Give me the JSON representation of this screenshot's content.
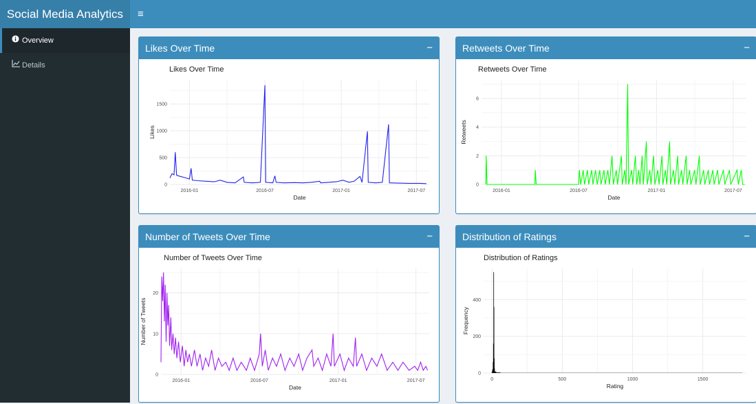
{
  "app": {
    "title": "Social Media Analytics",
    "menu_toggle": "≡"
  },
  "sidebar": {
    "items": [
      {
        "label": "Overview",
        "icon": "info-circle-icon",
        "active": true
      },
      {
        "label": "Details",
        "icon": "line-chart-icon",
        "active": false
      }
    ]
  },
  "colors": {
    "header": "#3c8dbc",
    "sidebar": "#222d32",
    "likes": "#2222ee",
    "retweets": "#00ff00",
    "tweets": "#a020f0",
    "ratings": "#000000"
  },
  "boxes": [
    {
      "title": "Likes Over Time",
      "collapse": "−"
    },
    {
      "title": "Retweets Over Time",
      "collapse": "−"
    },
    {
      "title": "Number of Tweets Over Time",
      "collapse": "−"
    },
    {
      "title": "Distribution of Ratings",
      "collapse": "−"
    }
  ],
  "chart_data": [
    {
      "type": "line",
      "title": "Likes Over Time",
      "xlabel": "Date",
      "ylabel": "Likes",
      "xticks": [
        "2016-01",
        "2016-07",
        "2017-01",
        "2017-07"
      ],
      "yticks": [
        0,
        500,
        1000,
        1500
      ],
      "xlim": [
        "2015-11-15",
        "2017-08-01"
      ],
      "ylim": [
        0,
        1950
      ],
      "grid": true,
      "series": [
        {
          "points": [
            [
              "2015-11-15",
              120
            ],
            [
              "2015-11-20",
              200
            ],
            [
              "2015-11-25",
              180
            ],
            [
              "2015-11-28",
              600
            ],
            [
              "2015-12-01",
              170
            ],
            [
              "2015-12-10",
              150
            ],
            [
              "2015-12-20",
              130
            ],
            [
              "2016-01-01",
              100
            ],
            [
              "2016-01-05",
              300
            ],
            [
              "2016-01-08",
              80
            ],
            [
              "2016-01-20",
              70
            ],
            [
              "2016-02-10",
              60
            ],
            [
              "2016-03-01",
              50
            ],
            [
              "2016-03-15",
              80
            ],
            [
              "2016-04-01",
              40
            ],
            [
              "2016-04-20",
              30
            ],
            [
              "2016-05-10",
              140
            ],
            [
              "2016-05-12",
              40
            ],
            [
              "2016-06-01",
              30
            ],
            [
              "2016-06-20",
              40
            ],
            [
              "2016-07-01",
              1850
            ],
            [
              "2016-07-03",
              40
            ],
            [
              "2016-07-20",
              30
            ],
            [
              "2016-07-25",
              160
            ],
            [
              "2016-07-28",
              40
            ],
            [
              "2016-08-15",
              30
            ],
            [
              "2016-09-10",
              35
            ],
            [
              "2016-10-01",
              30
            ],
            [
              "2016-10-20",
              40
            ],
            [
              "2016-11-10",
              60
            ],
            [
              "2016-11-12",
              30
            ],
            [
              "2016-12-01",
              40
            ],
            [
              "2016-12-20",
              50
            ],
            [
              "2017-01-05",
              80
            ],
            [
              "2017-01-20",
              40
            ],
            [
              "2017-02-01",
              60
            ],
            [
              "2017-02-15",
              150
            ],
            [
              "2017-02-20",
              40
            ],
            [
              "2017-03-05",
              990
            ],
            [
              "2017-03-07",
              40
            ],
            [
              "2017-03-25",
              30
            ],
            [
              "2017-04-10",
              40
            ],
            [
              "2017-04-25",
              1120
            ],
            [
              "2017-04-27",
              30
            ],
            [
              "2017-05-20",
              25
            ],
            [
              "2017-06-15",
              20
            ],
            [
              "2017-07-10",
              20
            ],
            [
              "2017-07-25",
              15
            ]
          ]
        }
      ]
    },
    {
      "type": "line",
      "title": "Retweets Over Time",
      "xlabel": "Date",
      "ylabel": "Retweets",
      "xticks": [
        "2016-01",
        "2016-07",
        "2017-01",
        "2017-07"
      ],
      "yticks": [
        0,
        2,
        4,
        6
      ],
      "xlim": [
        "2015-11-15",
        "2017-08-01"
      ],
      "ylim": [
        0,
        7.3
      ],
      "grid": true,
      "series": [
        {
          "points": [
            [
              "2015-11-25",
              0
            ],
            [
              "2015-11-26",
              2
            ],
            [
              "2015-11-28",
              0
            ],
            [
              "2016-03-20",
              0
            ],
            [
              "2016-03-21",
              1
            ],
            [
              "2016-03-23",
              0
            ],
            [
              "2016-07-01",
              0
            ],
            [
              "2016-07-03",
              1
            ],
            [
              "2016-07-06",
              0
            ],
            [
              "2016-07-12",
              1
            ],
            [
              "2016-07-15",
              0
            ],
            [
              "2016-07-22",
              1
            ],
            [
              "2016-07-25",
              0
            ],
            [
              "2016-08-01",
              1
            ],
            [
              "2016-08-04",
              0
            ],
            [
              "2016-08-10",
              1
            ],
            [
              "2016-08-14",
              0
            ],
            [
              "2016-08-20",
              1
            ],
            [
              "2016-08-23",
              0
            ],
            [
              "2016-08-30",
              1
            ],
            [
              "2016-09-02",
              0
            ],
            [
              "2016-09-08",
              1
            ],
            [
              "2016-09-12",
              0
            ],
            [
              "2016-09-18",
              2
            ],
            [
              "2016-09-21",
              0
            ],
            [
              "2016-09-28",
              1
            ],
            [
              "2016-10-01",
              0
            ],
            [
              "2016-10-10",
              2
            ],
            [
              "2016-10-12",
              0
            ],
            [
              "2016-10-18",
              1
            ],
            [
              "2016-10-21",
              0
            ],
            [
              "2016-10-25",
              7
            ],
            [
              "2016-10-27",
              0
            ],
            [
              "2016-11-03",
              1
            ],
            [
              "2016-11-06",
              0
            ],
            [
              "2016-11-12",
              2
            ],
            [
              "2016-11-15",
              0
            ],
            [
              "2016-11-20",
              1
            ],
            [
              "2016-11-23",
              0
            ],
            [
              "2016-11-28",
              2
            ],
            [
              "2016-12-01",
              0
            ],
            [
              "2016-12-08",
              3
            ],
            [
              "2016-12-10",
              0
            ],
            [
              "2016-12-16",
              1
            ],
            [
              "2016-12-19",
              0
            ],
            [
              "2016-12-25",
              2
            ],
            [
              "2016-12-28",
              0
            ],
            [
              "2017-01-04",
              1
            ],
            [
              "2017-01-07",
              0
            ],
            [
              "2017-01-14",
              2
            ],
            [
              "2017-01-16",
              0
            ],
            [
              "2017-01-22",
              1
            ],
            [
              "2017-01-25",
              0
            ],
            [
              "2017-02-01",
              3
            ],
            [
              "2017-02-03",
              0
            ],
            [
              "2017-02-10",
              1
            ],
            [
              "2017-02-13",
              0
            ],
            [
              "2017-02-20",
              2
            ],
            [
              "2017-02-22",
              0
            ],
            [
              "2017-03-01",
              1
            ],
            [
              "2017-03-04",
              0
            ],
            [
              "2017-03-12",
              2
            ],
            [
              "2017-03-14",
              0
            ],
            [
              "2017-03-20",
              1
            ],
            [
              "2017-03-23",
              0
            ],
            [
              "2017-04-01",
              1
            ],
            [
              "2017-04-04",
              0
            ],
            [
              "2017-04-12",
              2
            ],
            [
              "2017-04-14",
              0
            ],
            [
              "2017-04-22",
              1
            ],
            [
              "2017-04-25",
              0
            ],
            [
              "2017-05-03",
              1
            ],
            [
              "2017-05-06",
              0
            ],
            [
              "2017-05-14",
              1
            ],
            [
              "2017-05-17",
              0
            ],
            [
              "2017-05-25",
              1
            ],
            [
              "2017-05-28",
              0
            ],
            [
              "2017-06-08",
              1
            ],
            [
              "2017-06-11",
              0
            ],
            [
              "2017-06-22",
              1
            ],
            [
              "2017-06-25",
              0
            ],
            [
              "2017-07-10",
              1
            ],
            [
              "2017-07-13",
              0
            ],
            [
              "2017-07-20",
              1
            ],
            [
              "2017-07-23",
              0
            ],
            [
              "2017-07-28",
              0
            ]
          ]
        }
      ]
    },
    {
      "type": "line",
      "title": "Number of Tweets Over Time",
      "xlabel": "Date",
      "ylabel": "Number of Tweets",
      "xticks": [
        "2016-01",
        "2016-07",
        "2017-01",
        "2017-07"
      ],
      "yticks": [
        0,
        10,
        20
      ],
      "xlim": [
        "2015-11-15",
        "2017-08-01"
      ],
      "ylim": [
        0,
        26
      ],
      "grid": true,
      "series": [
        {
          "points": [
            [
              "2015-11-15",
              3
            ],
            [
              "2015-11-17",
              24
            ],
            [
              "2015-11-19",
              18
            ],
            [
              "2015-11-21",
              25
            ],
            [
              "2015-11-23",
              13
            ],
            [
              "2015-11-25",
              22
            ],
            [
              "2015-11-27",
              8
            ],
            [
              "2015-11-29",
              20
            ],
            [
              "2015-12-01",
              12
            ],
            [
              "2015-12-03",
              17
            ],
            [
              "2015-12-05",
              7
            ],
            [
              "2015-12-08",
              14
            ],
            [
              "2015-12-10",
              6
            ],
            [
              "2015-12-13",
              10
            ],
            [
              "2015-12-16",
              5
            ],
            [
              "2015-12-19",
              9
            ],
            [
              "2015-12-22",
              4
            ],
            [
              "2015-12-26",
              8
            ],
            [
              "2015-12-30",
              3
            ],
            [
              "2016-01-04",
              7
            ],
            [
              "2016-01-08",
              2
            ],
            [
              "2016-01-12",
              6
            ],
            [
              "2016-01-16",
              3
            ],
            [
              "2016-01-20",
              5
            ],
            [
              "2016-01-25",
              2
            ],
            [
              "2016-02-01",
              6
            ],
            [
              "2016-02-07",
              2
            ],
            [
              "2016-02-14",
              5
            ],
            [
              "2016-02-20",
              1
            ],
            [
              "2016-02-27",
              4
            ],
            [
              "2016-03-05",
              2
            ],
            [
              "2016-03-12",
              6
            ],
            [
              "2016-03-20",
              1
            ],
            [
              "2016-03-28",
              4
            ],
            [
              "2016-04-05",
              2
            ],
            [
              "2016-04-14",
              3
            ],
            [
              "2016-04-22",
              1
            ],
            [
              "2016-05-01",
              4
            ],
            [
              "2016-05-10",
              1
            ],
            [
              "2016-05-20",
              3
            ],
            [
              "2016-06-01",
              1
            ],
            [
              "2016-06-10",
              4
            ],
            [
              "2016-06-20",
              1
            ],
            [
              "2016-07-01",
              5
            ],
            [
              "2016-07-04",
              10
            ],
            [
              "2016-07-08",
              2
            ],
            [
              "2016-07-15",
              6
            ],
            [
              "2016-07-22",
              1
            ],
            [
              "2016-08-01",
              4
            ],
            [
              "2016-08-10",
              2
            ],
            [
              "2016-08-20",
              5
            ],
            [
              "2016-08-30",
              1
            ],
            [
              "2016-09-10",
              4
            ],
            [
              "2016-09-20",
              2
            ],
            [
              "2016-10-01",
              5
            ],
            [
              "2016-10-10",
              1
            ],
            [
              "2016-10-20",
              4
            ],
            [
              "2016-11-01",
              6
            ],
            [
              "2016-11-05",
              2
            ],
            [
              "2016-11-15",
              4
            ],
            [
              "2016-11-25",
              1
            ],
            [
              "2016-12-05",
              5
            ],
            [
              "2016-12-15",
              2
            ],
            [
              "2016-12-20",
              10
            ],
            [
              "2016-12-23",
              2
            ],
            [
              "2017-01-05",
              5
            ],
            [
              "2017-01-15",
              1
            ],
            [
              "2017-01-25",
              4
            ],
            [
              "2017-02-05",
              2
            ],
            [
              "2017-02-10",
              9
            ],
            [
              "2017-02-13",
              2
            ],
            [
              "2017-02-25",
              5
            ],
            [
              "2017-03-08",
              1
            ],
            [
              "2017-03-20",
              4
            ],
            [
              "2017-04-01",
              2
            ],
            [
              "2017-04-12",
              5
            ],
            [
              "2017-04-25",
              1
            ],
            [
              "2017-05-08",
              3
            ],
            [
              "2017-05-20",
              1
            ],
            [
              "2017-06-01",
              3
            ],
            [
              "2017-06-15",
              1
            ],
            [
              "2017-06-28",
              2
            ],
            [
              "2017-07-05",
              1
            ],
            [
              "2017-07-12",
              3
            ],
            [
              "2017-07-18",
              1
            ],
            [
              "2017-07-24",
              2
            ],
            [
              "2017-07-28",
              1
            ]
          ]
        }
      ]
    },
    {
      "type": "histogram",
      "title": "Distribution of Ratings",
      "xlabel": "Rating",
      "ylabel": "Frequency",
      "xticks": [
        0,
        500,
        1000,
        1500
      ],
      "yticks": [
        0,
        200,
        400
      ],
      "xlim": [
        -60,
        1810
      ],
      "ylim": [
        0,
        570
      ],
      "grid": true,
      "bins": [
        [
          -2,
          2,
          8
        ],
        [
          2,
          6,
          20
        ],
        [
          6,
          8,
          60
        ],
        [
          8,
          10,
          160
        ],
        [
          10,
          12,
          550
        ],
        [
          12,
          14,
          360
        ],
        [
          14,
          16,
          80
        ],
        [
          16,
          20,
          25
        ],
        [
          20,
          30,
          8
        ],
        [
          30,
          60,
          3
        ],
        [
          60,
          1780,
          1
        ]
      ]
    }
  ]
}
